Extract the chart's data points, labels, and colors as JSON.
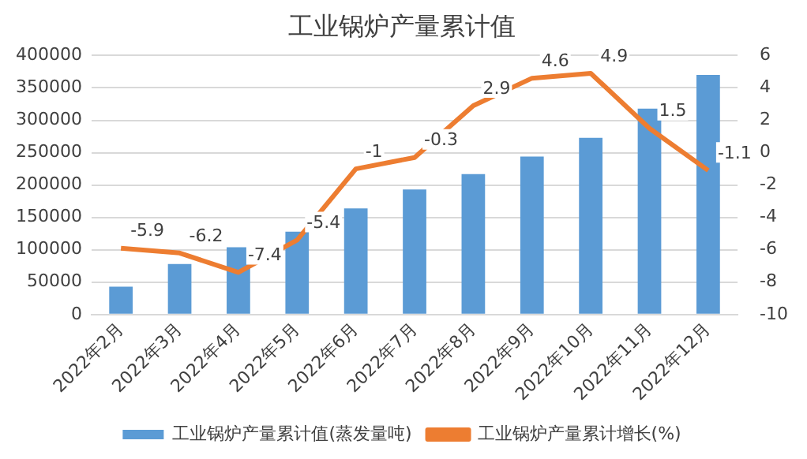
{
  "chart_data": {
    "type": "bar",
    "title": "工业锅炉产量累计值",
    "categories": [
      "2022年2月",
      "2022年3月",
      "2022年4月",
      "2022年5月",
      "2022年6月",
      "2022年7月",
      "2022年8月",
      "2022年9月",
      "2022年10月",
      "2022年11月",
      "2022年12月"
    ],
    "series": [
      {
        "name": "工业锅炉产量累计值(蒸发量吨)",
        "color": "#5b9bd5",
        "values": [
          43000,
          78000,
          104000,
          128000,
          164000,
          193000,
          217000,
          244000,
          273000,
          318000,
          370000
        ]
      },
      {
        "name": "工业锅炉产量累计增长(%)",
        "type": "line",
        "axis": "y2",
        "color": "#ed7d31",
        "values": [
          -5.9,
          -6.2,
          -7.4,
          -5.4,
          -1,
          -0.3,
          2.9,
          4.6,
          4.9,
          1.5,
          -1.1
        ],
        "value_labels": [
          "-5.9",
          "-6.2",
          "-7.4",
          "-5.4",
          "-1",
          "-0.3",
          "2.9",
          "4.6",
          "4.9",
          "1.5",
          "-1.1"
        ]
      }
    ],
    "ylim": [
      0,
      400000
    ],
    "yticks": [
      0,
      50000,
      100000,
      150000,
      200000,
      250000,
      300000,
      350000,
      400000
    ],
    "y2lim": [
      -10,
      6
    ],
    "y2ticks": [
      -10,
      -8,
      -6,
      -4,
      -2,
      0,
      2,
      4,
      6
    ],
    "grid": "y",
    "legend": "bottom",
    "marker": "none"
  }
}
